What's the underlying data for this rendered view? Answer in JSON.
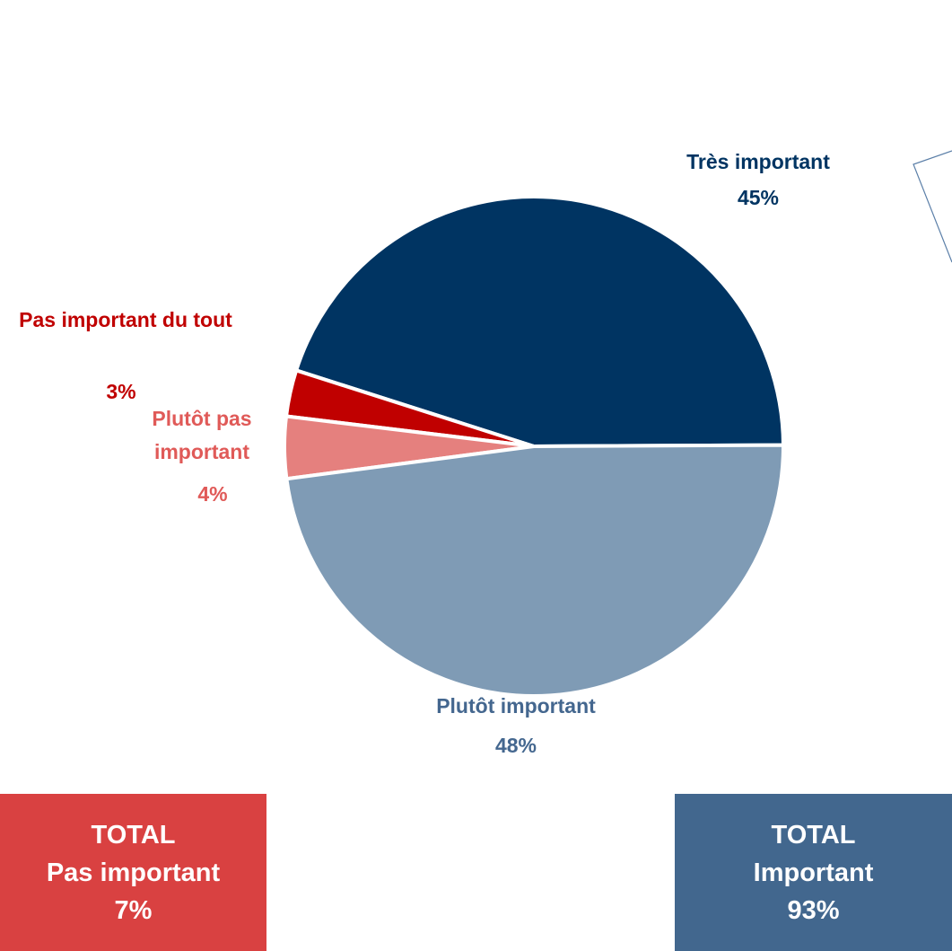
{
  "chart_data": {
    "type": "pie",
    "categories": [
      "Très important",
      "Pas important du tout",
      "Plutôt pas important",
      "Plutôt important"
    ],
    "values": [
      45,
      3,
      4,
      48
    ],
    "value_labels": [
      "45%",
      "3%",
      "4%",
      "48%"
    ],
    "colors": [
      "#003462",
      "#c00000",
      "#e5807e",
      "#7f9bb5"
    ],
    "label_colors": [
      "#003462",
      "#c00000",
      "#e05a58",
      "#44678f"
    ],
    "totals": [
      {
        "title": "TOTAL",
        "label": "Pas important",
        "value": "7%",
        "color": "#d94141"
      },
      {
        "title": "TOTAL",
        "label": "Important",
        "value": "93%",
        "color": "#42678e"
      }
    ]
  }
}
